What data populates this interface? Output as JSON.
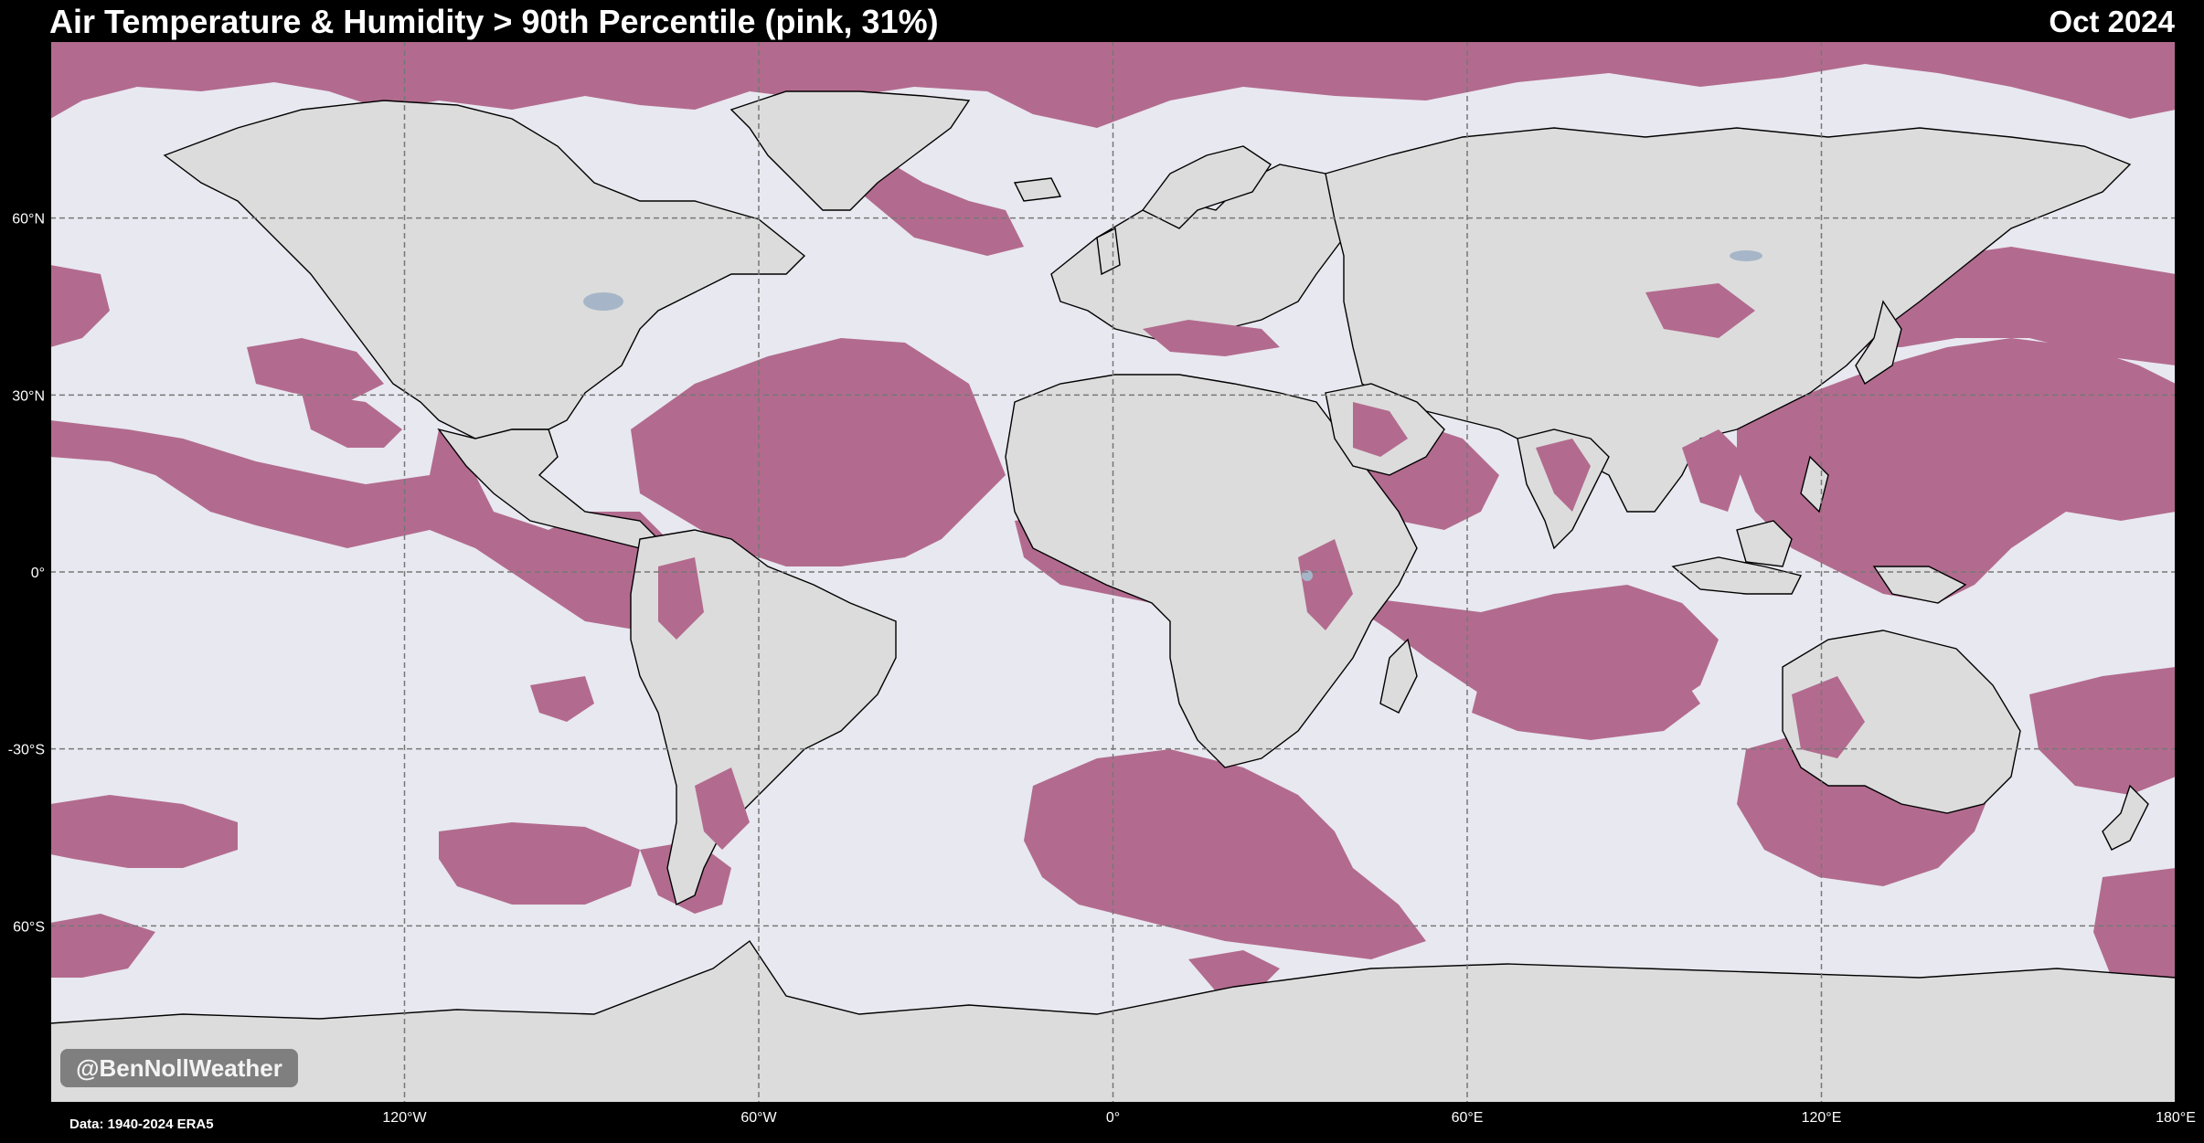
{
  "header": {
    "title": "Air Temperature & Humidity > 90th Percentile (pink, 31%)",
    "date": "Oct 2024"
  },
  "footer": {
    "source": "Data: 1940-2024 ERA5",
    "watermark": "@BenNollWeather"
  },
  "colors": {
    "background": "#000000",
    "ocean": "#e8e8f0",
    "land": "#dcdcdc",
    "anomaly": "#b26b8e",
    "grid": "#777777",
    "lakes": "#a6b6c8"
  },
  "map": {
    "projection": "PlateCarree",
    "extent": {
      "lon": [
        -180,
        180
      ],
      "lat": [
        -90,
        90
      ]
    },
    "gridlines": "dashed",
    "x_ticks": [
      {
        "lon": -120,
        "label": "120°W"
      },
      {
        "lon": -60,
        "label": "60°W"
      },
      {
        "lon": 0,
        "label": "0°"
      },
      {
        "lon": 60,
        "label": "60°E"
      },
      {
        "lon": 120,
        "label": "120°E"
      },
      {
        "lon": 180,
        "label": "180°E"
      }
    ],
    "y_ticks": [
      {
        "lat": 60,
        "label": "60°N"
      },
      {
        "lat": 30,
        "label": "30°N"
      },
      {
        "lat": 0,
        "label": "0°"
      },
      {
        "lat": -30,
        "label": "-30°S"
      },
      {
        "lat": -60,
        "label": "60°S"
      }
    ],
    "anomaly_fraction_percent": 31
  }
}
